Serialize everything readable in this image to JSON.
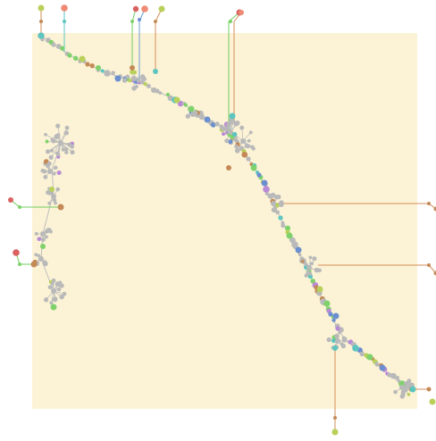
{
  "colors": {
    "background": "#ffffff",
    "panel": "#fcf3d6",
    "node_gray": "#b9b9b9",
    "node_teal": "#5cc5c0",
    "node_blue": "#6c8fcf",
    "node_green": "#7fd26b",
    "node_lime": "#b9d05a",
    "node_purple": "#b98ad6",
    "node_brown": "#c48a56",
    "node_red": "#d9615f",
    "node_salmon": "#f08a74",
    "edge_gray": "#bdbdbd",
    "edge_green": "#6fce5e",
    "edge_blue": "#6b9fd6",
    "edge_orange": "#d38e58",
    "edge_teal": "#5cc5c0"
  },
  "graph": {
    "description_hidden": true,
    "node_count_visible": "many",
    "edge_count_visible": "many"
  }
}
